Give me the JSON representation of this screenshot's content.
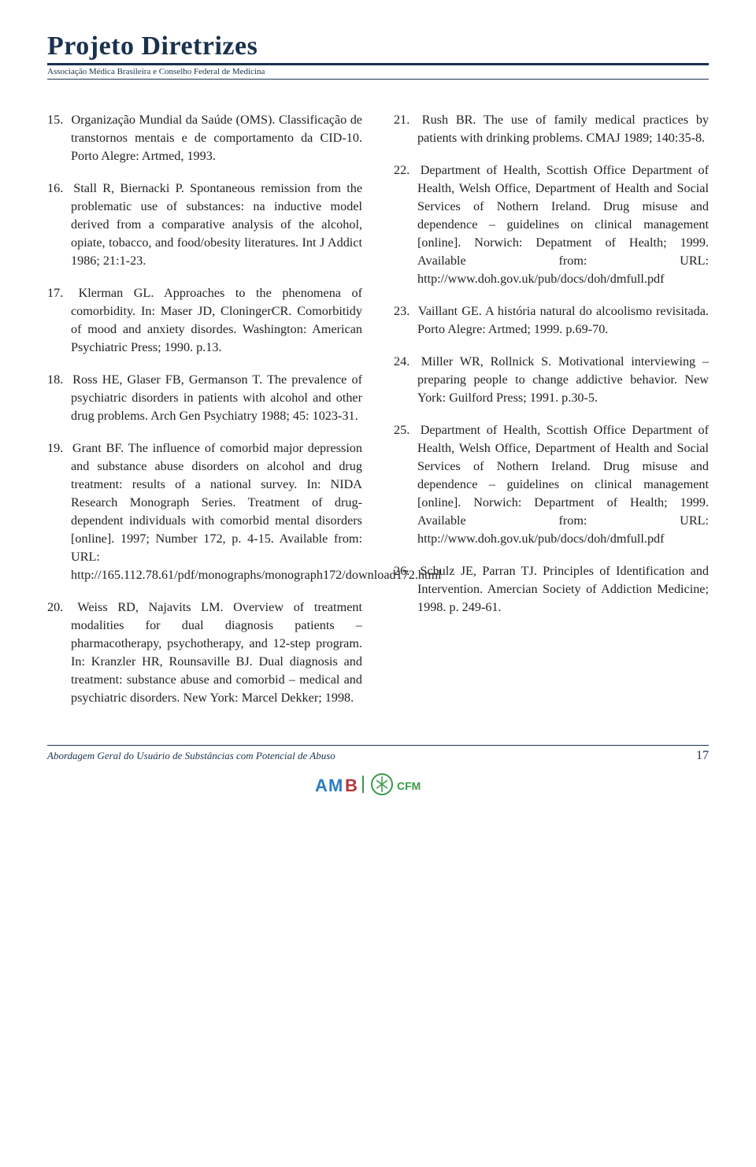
{
  "header": {
    "title": "Projeto Diretrizes",
    "subtitle": "Associação Médica Brasileira e Conselho Federal de Medicina"
  },
  "references": [
    {
      "num": "15.",
      "text": "Organização Mundial da Saúde (OMS). Classificação de transtornos mentais e de comportamento da CID-10. Porto Alegre: Artmed, 1993."
    },
    {
      "num": "16.",
      "text": "Stall R, Biernacki P. Spontaneous remission from the problematic use of substances: na inductive model derived from a comparative analysis of the alcohol, opiate, tobacco, and food/obesity literatures. Int J Addict 1986; 21:1-23."
    },
    {
      "num": "17.",
      "text": "Klerman GL. Approaches to the phenomena of comorbidity. In: Maser JD, CloningerCR. Comorbitidy of mood and anxiety disordes. Washington: American Psychiatric Press; 1990. p.13."
    },
    {
      "num": "18.",
      "text": "Ross HE, Glaser FB, Germanson T. The prevalence of psychiatric disorders in patients with alcohol and other drug problems. Arch Gen Psychiatry 1988; 45: 1023-31."
    },
    {
      "num": "19.",
      "text": "Grant BF. The influence of comorbid major depression and substance abuse disorders on alcohol and drug treatment: results of a national survey. In: NIDA Research Monograph Series. Treatment of drug-dependent individuals with comorbid mental disorders [online]. 1997; Number 172, p. 4-15. Available from: URL: http://165.112.78.61/pdf/monographs/monograph172/download172.html"
    },
    {
      "num": "20.",
      "text": "Weiss RD, Najavits LM. Overview of treatment modalities for dual diagnosis patients – pharmacotherapy, psychotherapy, and 12-step program. In: Kranzler HR, Rounsaville BJ. Dual diagnosis and treatment: substance abuse and comorbid – medical and psychiatric disorders. New York: Marcel Dekker; 1998."
    },
    {
      "num": "21.",
      "text": "Rush BR. The use of family medical practices by patients with drinking problems. CMAJ 1989; 140:35-8."
    },
    {
      "num": "22.",
      "text": "Department of Health, Scottish Office Department of Health, Welsh Office, Department of Health and Social Services of Nothern Ireland. Drug misuse and dependence – guidelines on clinical management [online]. Norwich: Depatment of Health; 1999. Available from: URL: http://www.doh.gov.uk/pub/docs/doh/dmfull.pdf"
    },
    {
      "num": "23.",
      "text": "Vaillant GE. A história natural do alcoolismo revisitada. Porto Alegre: Artmed; 1999. p.69-70."
    },
    {
      "num": "24.",
      "text": "Miller WR, Rollnick S. Motivational interviewing – preparing people to change addictive behavior. New York: Guilford Press; 1991. p.30-5."
    },
    {
      "num": "25.",
      "text": "Department of Health, Scottish Office Department of Health, Welsh Office, Department of Health and Social Services of Nothern Ireland. Drug misuse and dependence – guidelines on clinical management [online]. Norwich: Department of Health; 1999. Available from: URL: http://www.doh.gov.uk/pub/docs/doh/dmfull.pdf"
    },
    {
      "num": "26.",
      "text": "Schulz JE, Parran TJ. Principles of Identification and Intervention. Amercian Society of Addiction Medicine; 1998. p. 249-61."
    }
  ],
  "footer": {
    "left": "Abordagem Geral do Usuário de Substâncias com Potencial de Abuso",
    "page": "17"
  },
  "colors": {
    "brand": "#1a324e",
    "text": "#222222",
    "logo_blue": "#2d7cc1",
    "logo_green": "#3a9a4a",
    "logo_red": "#b43838"
  }
}
